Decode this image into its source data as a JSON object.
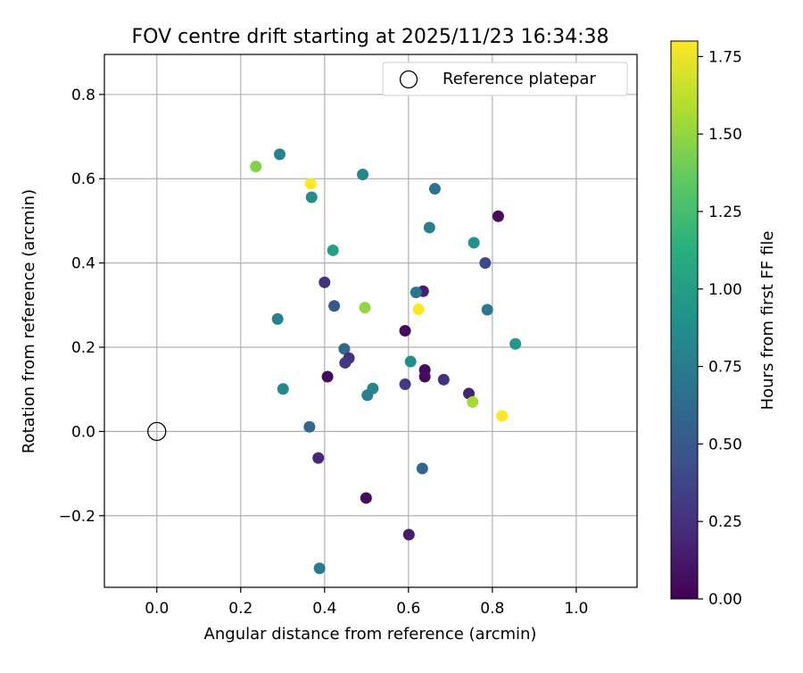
{
  "chart_data": {
    "type": "scatter",
    "title": "FOV centre drift starting at 2025/11/23 16:34:38",
    "xlabel": "Angular distance from reference (arcmin)",
    "ylabel": "Rotation from reference (arcmin)",
    "xlim": [
      -0.125,
      1.145
    ],
    "ylim": [
      -0.37,
      0.895
    ],
    "xticks": [
      0.0,
      0.2,
      0.4,
      0.6,
      0.8,
      1.0
    ],
    "xtick_labels": [
      "0.0",
      "0.2",
      "0.4",
      "0.6",
      "0.8",
      "1.0"
    ],
    "yticks": [
      -0.2,
      0.0,
      0.2,
      0.4,
      0.6,
      0.8
    ],
    "ytick_labels": [
      "−0.2",
      "0.0",
      "0.2",
      "0.4",
      "0.6",
      "0.8"
    ],
    "grid": true,
    "legend": {
      "position": "top-right",
      "label": "Reference platepar"
    },
    "reference_point": {
      "x": 0.0,
      "y": 0.0
    },
    "colorbar": {
      "label": "Hours from first FF file",
      "min": 0.0,
      "max": 1.8,
      "ticks": [
        0.0,
        0.25,
        0.5,
        0.75,
        1.0,
        1.25,
        1.5,
        1.75
      ],
      "tick_labels": [
        "0.00",
        "0.25",
        "0.50",
        "0.75",
        "1.00",
        "1.25",
        "1.50",
        "1.75"
      ],
      "colormap": [
        "#440154",
        "#472d7b",
        "#3b528b",
        "#2c728e",
        "#21918c",
        "#28ae80",
        "#5ec962",
        "#addc30",
        "#fde725"
      ]
    },
    "points": [
      {
        "x": 0.236,
        "y": 0.629,
        "h": 1.45
      },
      {
        "x": 0.293,
        "y": 0.658,
        "h": 0.8
      },
      {
        "x": 0.367,
        "y": 0.588,
        "h": 1.8
      },
      {
        "x": 0.369,
        "y": 0.556,
        "h": 0.88
      },
      {
        "x": 0.491,
        "y": 0.61,
        "h": 0.82
      },
      {
        "x": 0.663,
        "y": 0.576,
        "h": 0.67
      },
      {
        "x": 0.814,
        "y": 0.511,
        "h": 0.05
      },
      {
        "x": 0.65,
        "y": 0.484,
        "h": 0.78
      },
      {
        "x": 0.42,
        "y": 0.43,
        "h": 1.0
      },
      {
        "x": 0.756,
        "y": 0.448,
        "h": 0.9
      },
      {
        "x": 0.783,
        "y": 0.4,
        "h": 0.4
      },
      {
        "x": 0.4,
        "y": 0.354,
        "h": 0.25
      },
      {
        "x": 0.635,
        "y": 0.333,
        "h": 0.15
      },
      {
        "x": 0.618,
        "y": 0.33,
        "h": 0.7
      },
      {
        "x": 0.423,
        "y": 0.298,
        "h": 0.5
      },
      {
        "x": 0.496,
        "y": 0.294,
        "h": 1.5
      },
      {
        "x": 0.624,
        "y": 0.29,
        "h": 1.8
      },
      {
        "x": 0.788,
        "y": 0.289,
        "h": 0.72
      },
      {
        "x": 0.288,
        "y": 0.267,
        "h": 0.8
      },
      {
        "x": 0.592,
        "y": 0.239,
        "h": 0.05
      },
      {
        "x": 0.855,
        "y": 0.208,
        "h": 0.95
      },
      {
        "x": 0.447,
        "y": 0.196,
        "h": 0.6
      },
      {
        "x": 0.458,
        "y": 0.174,
        "h": 0.25
      },
      {
        "x": 0.449,
        "y": 0.163,
        "h": 0.3
      },
      {
        "x": 0.605,
        "y": 0.166,
        "h": 0.88
      },
      {
        "x": 0.639,
        "y": 0.146,
        "h": 0.05
      },
      {
        "x": 0.407,
        "y": 0.13,
        "h": 0.05
      },
      {
        "x": 0.639,
        "y": 0.13,
        "h": 0.05
      },
      {
        "x": 0.684,
        "y": 0.123,
        "h": 0.25
      },
      {
        "x": 0.592,
        "y": 0.112,
        "h": 0.3
      },
      {
        "x": 0.301,
        "y": 0.101,
        "h": 0.85
      },
      {
        "x": 0.515,
        "y": 0.102,
        "h": 0.82
      },
      {
        "x": 0.502,
        "y": 0.086,
        "h": 0.78
      },
      {
        "x": 0.744,
        "y": 0.09,
        "h": 0.18
      },
      {
        "x": 0.753,
        "y": 0.07,
        "h": 1.55
      },
      {
        "x": 0.823,
        "y": 0.037,
        "h": 1.8
      },
      {
        "x": 0.364,
        "y": 0.011,
        "h": 0.6
      },
      {
        "x": 0.385,
        "y": -0.063,
        "h": 0.2
      },
      {
        "x": 0.633,
        "y": -0.088,
        "h": 0.6
      },
      {
        "x": 0.499,
        "y": -0.158,
        "h": 0.05
      },
      {
        "x": 0.601,
        "y": -0.245,
        "h": 0.15
      },
      {
        "x": 0.388,
        "y": -0.325,
        "h": 0.75
      }
    ]
  }
}
